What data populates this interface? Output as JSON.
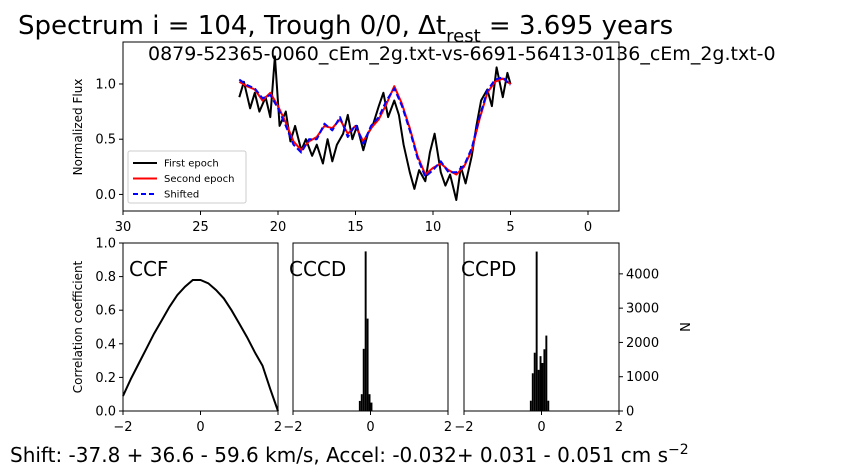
{
  "figure": {
    "title_main": "Spectrum i = 104, Trough 0/0, Δt",
    "title_sub": "rest",
    "title_tail": " = 3.695 years",
    "footer_main": "Shift: -37.8 +  36.6 -  59.6 km/s, Accel: -0.032+ 0.031 - 0.051 cm s",
    "footer_sup": "−2"
  },
  "chart_data": [
    {
      "type": "line",
      "title": "0879-52365-0060_cEm_2g.txt-vs-6691-56413-0136_cEm_2g.txt-0",
      "xlabel": "",
      "ylabel": "Normalized Flux",
      "xlim": [
        30,
        -2
      ],
      "ylim": [
        -0.15,
        1.38
      ],
      "x_ticks": [
        30,
        25,
        20,
        15,
        10,
        5,
        0
      ],
      "y_ticks": [
        0.0,
        0.5,
        1.0
      ],
      "legend_position": "lower-left",
      "series": [
        {
          "name": "First epoch",
          "color": "#000000",
          "style": "solid",
          "x": [
            22.5,
            22.2,
            21.8,
            21.5,
            21.2,
            20.8,
            20.5,
            20.2,
            19.9,
            19.5,
            19.2,
            18.9,
            18.5,
            18.2,
            17.8,
            17.5,
            17.1,
            16.8,
            16.5,
            16.2,
            15.8,
            15.5,
            15.2,
            14.9,
            14.5,
            14.2,
            13.9,
            13.5,
            13.2,
            12.9,
            12.5,
            12.2,
            11.9,
            11.5,
            11.2,
            10.9,
            10.5,
            10.2,
            9.9,
            9.5,
            9.2,
            8.9,
            8.5,
            8.2,
            7.9,
            7.5,
            7.2,
            6.9,
            6.5,
            6.2,
            5.9,
            5.5,
            5.2,
            5.0
          ],
          "values": [
            0.88,
            1.02,
            0.78,
            0.92,
            0.75,
            0.88,
            0.7,
            1.25,
            0.62,
            0.75,
            0.48,
            0.62,
            0.4,
            0.5,
            0.35,
            0.45,
            0.28,
            0.5,
            0.3,
            0.45,
            0.55,
            0.72,
            0.5,
            0.62,
            0.4,
            0.55,
            0.62,
            0.8,
            0.92,
            0.7,
            0.85,
            0.72,
            0.45,
            0.2,
            0.05,
            0.22,
            0.12,
            0.38,
            0.55,
            0.2,
            0.08,
            0.18,
            -0.05,
            0.25,
            0.1,
            0.35,
            0.62,
            0.85,
            0.95,
            0.8,
            1.15,
            0.88,
            1.1,
            1.0
          ]
        },
        {
          "name": "Second epoch",
          "color": "#ff0000",
          "style": "solid",
          "x": [
            22.5,
            22.0,
            21.5,
            21.0,
            20.5,
            20.0,
            19.5,
            19.0,
            18.5,
            18.0,
            17.5,
            17.0,
            16.5,
            16.0,
            15.5,
            15.0,
            14.5,
            14.0,
            13.5,
            13.0,
            12.5,
            12.0,
            11.5,
            11.0,
            10.5,
            10.0,
            9.5,
            9.0,
            8.5,
            8.0,
            7.5,
            7.0,
            6.5,
            6.0,
            5.5,
            5.0
          ],
          "values": [
            1.02,
            0.98,
            0.95,
            0.85,
            0.92,
            0.8,
            0.65,
            0.48,
            0.4,
            0.48,
            0.52,
            0.62,
            0.6,
            0.68,
            0.55,
            0.62,
            0.48,
            0.6,
            0.68,
            0.82,
            0.98,
            0.82,
            0.6,
            0.35,
            0.18,
            0.24,
            0.28,
            0.22,
            0.18,
            0.25,
            0.4,
            0.68,
            0.92,
            1.02,
            1.05,
            1.0
          ]
        },
        {
          "name": "Shifted",
          "color": "#0000ff",
          "style": "dashed",
          "x": [
            22.5,
            22.0,
            21.5,
            21.0,
            20.5,
            20.0,
            19.5,
            19.0,
            18.5,
            18.0,
            17.5,
            17.0,
            16.5,
            16.0,
            15.5,
            15.0,
            14.5,
            14.0,
            13.5,
            13.0,
            12.5,
            12.0,
            11.5,
            11.0,
            10.5,
            10.0,
            9.5,
            9.0,
            8.5,
            8.0,
            7.5,
            7.0,
            6.5,
            6.0,
            5.5,
            5.0
          ],
          "values": [
            1.04,
            0.99,
            0.96,
            0.87,
            0.9,
            0.78,
            0.62,
            0.45,
            0.38,
            0.5,
            0.5,
            0.64,
            0.58,
            0.7,
            0.52,
            0.63,
            0.46,
            0.62,
            0.7,
            0.85,
            0.96,
            0.8,
            0.58,
            0.33,
            0.16,
            0.22,
            0.3,
            0.2,
            0.2,
            0.26,
            0.42,
            0.7,
            0.94,
            1.04,
            1.06,
            0.99
          ]
        }
      ]
    },
    {
      "type": "line",
      "title": "CCF",
      "xlabel": "",
      "ylabel": "Correlation coefficient",
      "xlim": [
        -2,
        2
      ],
      "ylim": [
        0,
        1
      ],
      "x_ticks": [
        -2,
        0,
        2
      ],
      "y_ticks": [
        0.0,
        0.2,
        0.4,
        0.6,
        0.8,
        1.0
      ],
      "series": [
        {
          "color": "#000000",
          "x": [
            -2,
            -1.8,
            -1.6,
            -1.4,
            -1.2,
            -1.0,
            -0.8,
            -0.6,
            -0.4,
            -0.2,
            0,
            0.2,
            0.4,
            0.6,
            0.8,
            1.0,
            1.2,
            1.4,
            1.6,
            1.8,
            2.0
          ],
          "values": [
            0.09,
            0.19,
            0.28,
            0.37,
            0.46,
            0.54,
            0.62,
            0.69,
            0.74,
            0.78,
            0.78,
            0.76,
            0.72,
            0.67,
            0.6,
            0.52,
            0.44,
            0.35,
            0.27,
            0.13,
            0.0
          ]
        }
      ]
    },
    {
      "type": "bar",
      "title": "CCCD",
      "xlim": [
        -2,
        2
      ],
      "x_ticks": [
        -2,
        0,
        2
      ],
      "bins": [
        -0.3,
        -0.25,
        -0.2,
        -0.15,
        -0.1,
        -0.05,
        0.0
      ],
      "values": [
        0.06,
        0.1,
        0.37,
        0.95,
        0.55,
        0.1,
        0.05
      ]
    },
    {
      "type": "bar",
      "title": "CCPD",
      "xlabel": "",
      "ylabel": "N",
      "xlim": [
        -2,
        2
      ],
      "ylim": [
        0,
        4900
      ],
      "x_ticks": [
        -2,
        0,
        2
      ],
      "y_ticks": [
        0,
        1000,
        2000,
        3000,
        4000
      ],
      "bins": [
        -0.3,
        -0.25,
        -0.2,
        -0.15,
        -0.1,
        -0.05,
        0.0,
        0.05,
        0.1,
        0.15
      ],
      "values": [
        300,
        1100,
        1700,
        4650,
        1200,
        1600,
        1400,
        1800,
        2200,
        300
      ]
    }
  ]
}
